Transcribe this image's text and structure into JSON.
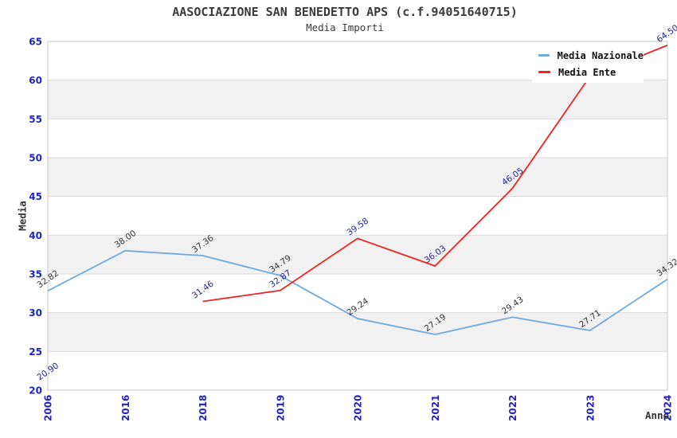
{
  "title": "AASOCIAZIONE SAN BENEDETTO APS (c.f.94051640715)",
  "subtitle": "Media Importi",
  "legend": {
    "items": [
      {
        "label": "Media Nazionale",
        "color": "#6FA9E1"
      },
      {
        "label": "Media Ente",
        "color": "#EE2424"
      }
    ]
  },
  "axes": {
    "y_title": "Media",
    "x_title": "Anno",
    "y_ticks": [
      20,
      25,
      30,
      35,
      40,
      45,
      50,
      55,
      60,
      65
    ],
    "tick_color": "#2222CC"
  },
  "colors": {
    "background": "#FFFFFF",
    "band": "#F1F1F1",
    "grid": "#DBDBDB",
    "border": "#C8C8C8"
  },
  "chart_data": {
    "type": "line",
    "title": "AASOCIAZIONE SAN BENEDETTO APS (c.f.94051640715)",
    "subtitle": "Media Importi",
    "xlabel": "Anno",
    "ylabel": "Media",
    "ylim": [
      20,
      65
    ],
    "grid": true,
    "legend_position": "top-right",
    "categories": [
      "2006",
      "2016",
      "2018",
      "2019",
      "2020",
      "2021",
      "2022",
      "2023",
      "2024"
    ],
    "series": [
      {
        "name": "Media Nazionale",
        "color": "#6FA9E1",
        "label_color": "#333333",
        "values": [
          32.82,
          38.0,
          37.36,
          34.79,
          29.24,
          27.19,
          29.43,
          27.71,
          34.32
        ],
        "point_labels": [
          "32.82",
          "38.00",
          "37.36",
          "34.79",
          "29.24",
          "27.19",
          "29.43",
          "27.71",
          "34.32"
        ]
      },
      {
        "name": "Media Ente",
        "color": "#EE2424",
        "label_color": "#222299",
        "values": [
          20.9,
          null,
          31.46,
          32.87,
          39.58,
          36.03,
          46.05,
          60.5,
          64.5
        ],
        "point_labels": [
          "20.90",
          "",
          "31.46",
          "32.87",
          "39.58",
          "36.03",
          "46.05",
          "",
          "64.50"
        ]
      }
    ]
  }
}
